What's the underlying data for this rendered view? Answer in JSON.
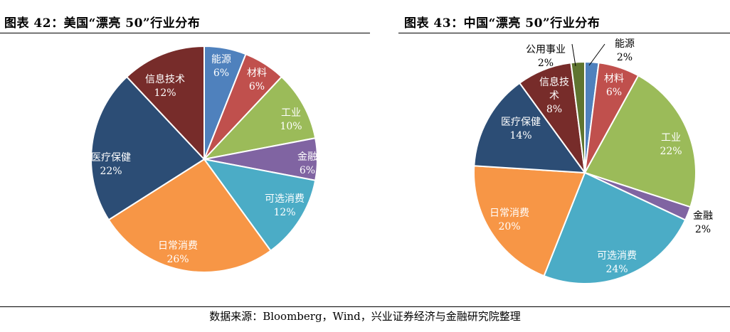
{
  "left": {
    "title": "图表 42：美国“漂亮 50”行业分布"
  },
  "right": {
    "title": "图表 43：中国“漂亮 50”行业分布"
  },
  "source": "数据来源：Bloomberg，Wind，兴业证券经济与金融研究院整理",
  "colors": {
    "energy": "#4f81bd",
    "materials": "#c0504d",
    "industrials": "#9bbb59",
    "financials": "#8064a2",
    "consumer_disc": "#4bacc6",
    "consumer_staples": "#f79646",
    "healthcare": "#2c4d75",
    "it": "#772c2a",
    "utilities": "#5f7530"
  },
  "chart_data": [
    {
      "type": "pie",
      "title": "图表 42：美国“漂亮 50”行业分布",
      "slices": [
        {
          "label": "能源",
          "value": 6,
          "pct": "6%",
          "color_key": "energy"
        },
        {
          "label": "材料",
          "value": 6,
          "pct": "6%",
          "color_key": "materials"
        },
        {
          "label": "工业",
          "value": 10,
          "pct": "10%",
          "color_key": "industrials"
        },
        {
          "label": "金融",
          "value": 6,
          "pct": "6%",
          "color_key": "financials"
        },
        {
          "label": "可选消费",
          "value": 12,
          "pct": "12%",
          "color_key": "consumer_disc"
        },
        {
          "label": "日常消费",
          "value": 26,
          "pct": "26%",
          "color_key": "consumer_staples"
        },
        {
          "label": "医疗保健",
          "value": 22,
          "pct": "22%",
          "color_key": "healthcare"
        },
        {
          "label": "信息技术",
          "value": 12,
          "pct": "12%",
          "color_key": "it"
        }
      ]
    },
    {
      "type": "pie",
      "title": "图表 43：中国“漂亮 50”行业分布",
      "slices": [
        {
          "label": "能源",
          "value": 2,
          "pct": "2%",
          "color_key": "energy"
        },
        {
          "label": "材料",
          "value": 6,
          "pct": "6%",
          "color_key": "materials"
        },
        {
          "label": "工业",
          "value": 22,
          "pct": "22%",
          "color_key": "industrials"
        },
        {
          "label": "金融",
          "value": 2,
          "pct": "2%",
          "color_key": "financials"
        },
        {
          "label": "可选消费",
          "value": 24,
          "pct": "24%",
          "color_key": "consumer_disc"
        },
        {
          "label": "日常消费",
          "value": 20,
          "pct": "20%",
          "color_key": "consumer_staples"
        },
        {
          "label": "医疗保健",
          "value": 14,
          "pct": "14%",
          "color_key": "healthcare"
        },
        {
          "label": "信息技术",
          "value": 8,
          "pct": "8%",
          "color_key": "it"
        },
        {
          "label": "公用事业",
          "value": 2,
          "pct": "2%",
          "color_key": "utilities"
        }
      ]
    }
  ]
}
